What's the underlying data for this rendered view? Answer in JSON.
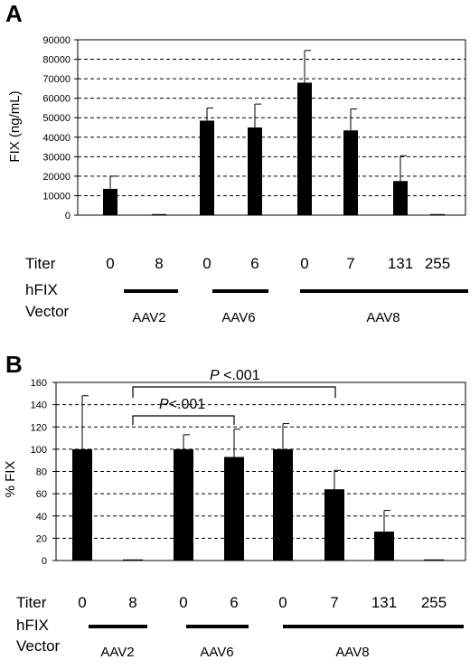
{
  "chart_data": [
    {
      "panel": "A",
      "type": "bar",
      "ylabel": "FIX (ng/mL)",
      "ylim": [
        0,
        90000
      ],
      "yticks": [
        "0",
        "10000",
        "20000",
        "30000",
        "40000",
        "50000",
        "60000",
        "70000",
        "80000",
        "90000"
      ],
      "grid": true,
      "categories": [
        "AAV2 0",
        "AAV2 8",
        "AAV6 0",
        "AAV6 6",
        "AAV8 0",
        "AAV8 7",
        "AAV8 131",
        "AAV8 255"
      ],
      "values": [
        13500,
        0,
        48500,
        45000,
        68000,
        43500,
        17500,
        300
      ],
      "errors": [
        6500,
        0,
        6500,
        12000,
        16500,
        11000,
        13000,
        0
      ],
      "row_labels": {
        "titer": "Titer",
        "vector_line1": "hFIX",
        "vector_line2": "Vector"
      },
      "titers": [
        "0",
        "8",
        "0",
        "6",
        "0",
        "7",
        "131",
        "255"
      ],
      "vectors": [
        "AAV2",
        "AAV6",
        "AAV8"
      ]
    },
    {
      "panel": "B",
      "type": "bar",
      "ylabel": "% FIX",
      "ylim": [
        0,
        160
      ],
      "yticks": [
        "0",
        "20",
        "40",
        "60",
        "80",
        "100",
        "120",
        "140",
        "160"
      ],
      "grid": true,
      "categories": [
        "AAV2 0",
        "AAV2 8",
        "AAV6 0",
        "AAV6 6",
        "AAV8 0",
        "AAV8 7",
        "AAV8 131",
        "AAV8 255"
      ],
      "values": [
        100,
        0,
        100,
        93,
        100,
        64,
        26,
        0
      ],
      "errors": [
        48,
        0,
        13,
        25,
        23,
        17,
        19,
        0
      ],
      "annotations": [
        {
          "p": "P",
          "text": " <.001"
        },
        {
          "p": "P",
          "text": "<.001"
        }
      ],
      "row_labels": {
        "titer": "Titer",
        "vector_line1": "hFIX",
        "vector_line2": "Vector"
      },
      "titers": [
        "0",
        "8",
        "0",
        "6",
        "0",
        "7",
        "131",
        "255"
      ],
      "vectors": [
        "AAV2",
        "AAV6",
        "AAV8"
      ]
    }
  ]
}
